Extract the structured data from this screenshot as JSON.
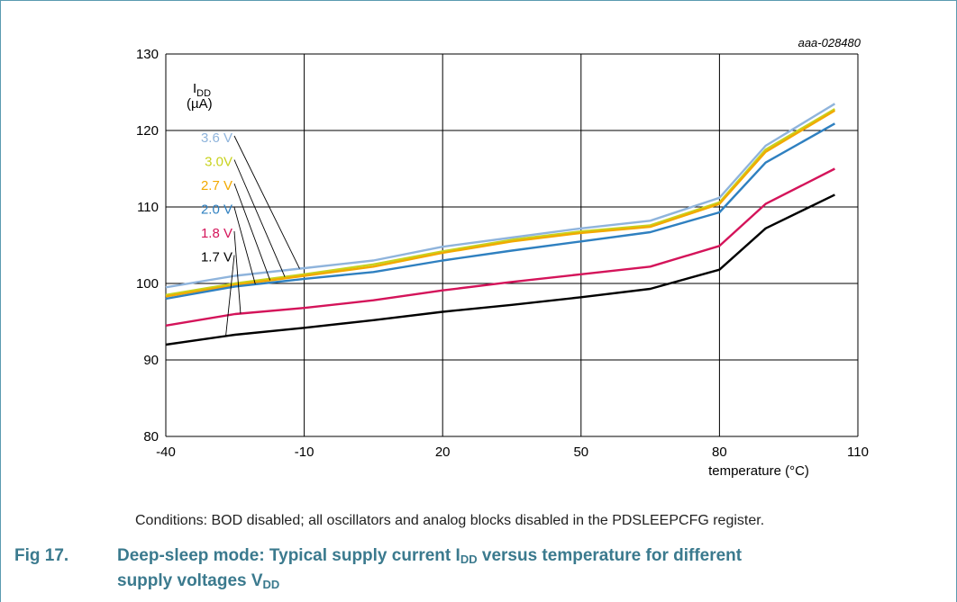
{
  "figure": {
    "id_label": "aaa-028480",
    "conditions": "Conditions: BOD disabled; all oscillators and analog blocks disabled in the PDSLEEPCFG register.",
    "caption_number": "Fig 17.",
    "caption_part1": "Deep-sleep mode: Typical supply current I",
    "caption_sub1": "DD",
    "caption_part2": " versus temperature for different",
    "caption_part3": "supply voltages V",
    "caption_sub2": "DD"
  },
  "colors": {
    "frame": "#5a9bb0",
    "grid": "#000000",
    "caption": "#3b7a8e"
  },
  "chart_data": {
    "type": "line",
    "ylabel_main": "I",
    "ylabel_sub": "DD",
    "ylabel_unit": "(µA)",
    "xlabel": "temperature (°C)",
    "xlim": [
      -40,
      110
    ],
    "ylim": [
      80,
      130
    ],
    "xticks": [
      -40,
      -10,
      20,
      50,
      80,
      110
    ],
    "yticks": [
      80,
      90,
      100,
      110,
      120,
      130
    ],
    "grid": true,
    "legend_placement": "left, with leader lines",
    "series": [
      {
        "name": "3.6 V",
        "color": "#8fb4dc",
        "x": [
          -40,
          -25,
          -10,
          5,
          20,
          35,
          50,
          65,
          80,
          90,
          105
        ],
        "y": [
          99.5,
          101,
          102,
          103,
          104.8,
          106,
          107.2,
          108.2,
          111.2,
          118,
          123.5
        ]
      },
      {
        "name": "3.0V",
        "color": "#c8d21e",
        "x": [
          -40,
          -25,
          -10,
          5,
          20,
          35,
          50,
          65,
          80,
          90,
          105
        ],
        "y": [
          98.5,
          100,
          101.2,
          102.5,
          104.2,
          105.7,
          106.8,
          107.6,
          110.6,
          117.5,
          122.8
        ]
      },
      {
        "name": "2.7 V",
        "color": "#f2a900",
        "x": [
          -40,
          -25,
          -10,
          5,
          20,
          35,
          50,
          65,
          80,
          90,
          105
        ],
        "y": [
          98.3,
          99.8,
          101,
          102.2,
          104,
          105.5,
          106.6,
          107.4,
          110.4,
          117.2,
          122.6
        ]
      },
      {
        "name": "2.0 V",
        "color": "#2f80c0",
        "x": [
          -40,
          -25,
          -10,
          5,
          20,
          35,
          50,
          65,
          80,
          90,
          105
        ],
        "y": [
          98,
          99.6,
          100.6,
          101.5,
          103,
          104.3,
          105.5,
          106.7,
          109.3,
          115.8,
          120.9
        ]
      },
      {
        "name": "1.8 V",
        "color": "#d4145a",
        "x": [
          -40,
          -25,
          -10,
          5,
          20,
          35,
          50,
          65,
          80,
          90,
          105
        ],
        "y": [
          94.5,
          96,
          96.8,
          97.8,
          99.1,
          100.2,
          101.2,
          102.2,
          104.9,
          110.4,
          115
        ]
      },
      {
        "name": "1.7 V",
        "color": "#000000",
        "x": [
          -40,
          -25,
          -10,
          5,
          20,
          35,
          50,
          65,
          80,
          90,
          105
        ],
        "y": [
          92,
          93.3,
          94.2,
          95.2,
          96.3,
          97.2,
          98.2,
          99.3,
          101.8,
          107.2,
          111.6
        ]
      }
    ]
  }
}
